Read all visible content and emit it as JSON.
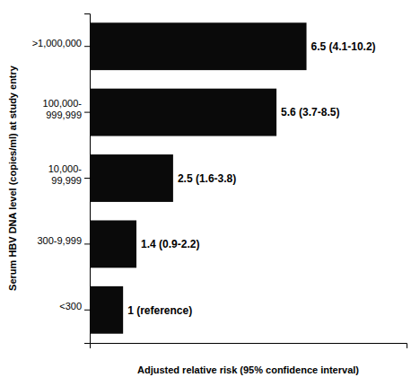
{
  "chart_data": {
    "type": "bar",
    "orientation": "horizontal",
    "categories": [
      ">1,000,000",
      "100,000-\n999,999",
      "10,000-\n99,999",
      "300-9,999",
      "<300"
    ],
    "values": [
      6.5,
      5.6,
      2.5,
      1.4,
      1.0
    ],
    "value_labels": [
      "6.5 (4.1-10.2)",
      "5.6 (3.7-8.5)",
      "2.5 (1.6-3.8)",
      "1.4 (0.9-2.2)",
      "1 (reference)"
    ],
    "data_labels": true,
    "color": "#0a0a0a",
    "xlabel": "Adjusted relative risk (95% confidence interval)",
    "ylabel": "Serum HBV DNA level (copies/ml) at study entry",
    "xlim": [
      0,
      9.5
    ],
    "tick_labels": "y",
    "grid": false
  }
}
